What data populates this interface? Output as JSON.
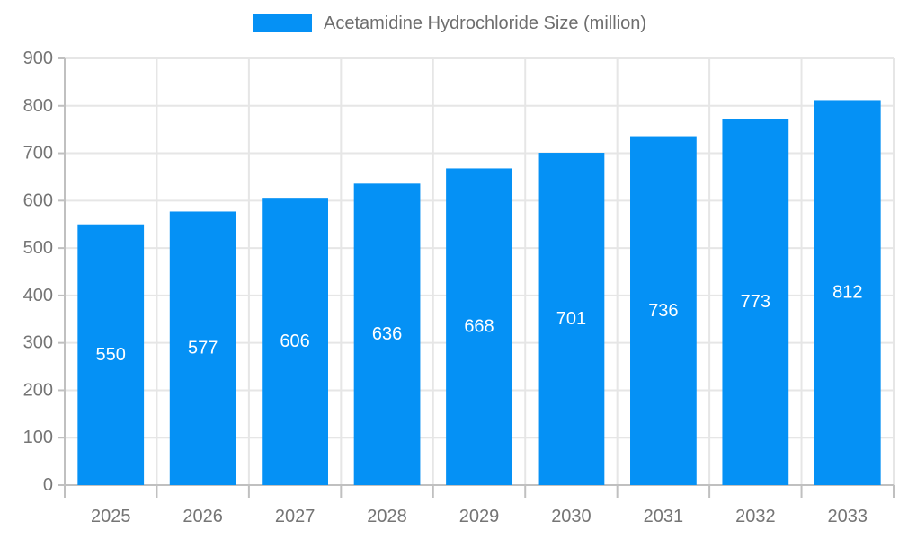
{
  "chart_data": {
    "type": "bar",
    "title": "Acetamidine Hydrochloride Size (million)",
    "legend": [
      "Acetamidine Hydrochloride Size (million)"
    ],
    "legend_position": "top",
    "categories": [
      "2025",
      "2026",
      "2027",
      "2028",
      "2029",
      "2030",
      "2031",
      "2032",
      "2033"
    ],
    "values": [
      550,
      577,
      606,
      636,
      668,
      701,
      736,
      773,
      812
    ],
    "xlabel": "",
    "ylabel": "",
    "ylim": [
      0,
      900
    ],
    "ytick_step": 100,
    "grid": true,
    "bar_value_labels_shown": true,
    "colors": {
      "bar": "#0591F5",
      "grid": "#E6E6E6",
      "axis": "#C0C0C0",
      "tick_text": "#757575",
      "legend_text": "#6E6E6E",
      "bar_label_text": "#FFFFFF",
      "background": "#FFFFFF"
    }
  }
}
